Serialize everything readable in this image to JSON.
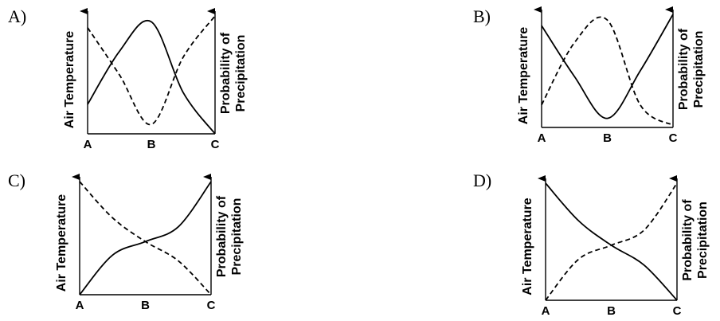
{
  "chart_data": [
    {
      "type": "line",
      "option_label": "A)",
      "categories": [
        "A",
        "B",
        "C"
      ],
      "left_axis_label": "Air Temperature",
      "right_axis_label": [
        "Probability of",
        "Precipitation"
      ],
      "series": [
        {
          "style": "solid",
          "x": [
            0,
            0.5,
            1.0,
            1.5,
            2.0
          ],
          "values": [
            0.25,
            0.7,
            0.95,
            0.35,
            0.0
          ]
        },
        {
          "style": "dashed",
          "x": [
            0,
            0.5,
            1.0,
            1.5,
            2.0
          ],
          "values": [
            0.9,
            0.5,
            0.08,
            0.65,
            1.0
          ]
        }
      ]
    },
    {
      "type": "line",
      "option_label": "B)",
      "categories": [
        "A",
        "B",
        "C"
      ],
      "left_axis_label": "Air Temperature",
      "right_axis_label": [
        "Probability of",
        "Precipitation"
      ],
      "series": [
        {
          "style": "solid",
          "x": [
            0,
            0.5,
            1.0,
            1.5,
            2.0
          ],
          "values": [
            0.9,
            0.45,
            0.08,
            0.5,
            1.0
          ]
        },
        {
          "style": "dashed",
          "x": [
            0,
            0.5,
            1.0,
            1.5,
            2.0
          ],
          "values": [
            0.2,
            0.75,
            0.95,
            0.2,
            0.02
          ]
        }
      ]
    },
    {
      "type": "line",
      "option_label": "C)",
      "categories": [
        "A",
        "B",
        "C"
      ],
      "left_axis_label": "Air Temperature",
      "right_axis_label": [
        "Probability of",
        "Precipitation"
      ],
      "series": [
        {
          "style": "solid",
          "x": [
            0,
            0.5,
            1.0,
            1.5,
            2.0
          ],
          "values": [
            0.0,
            0.35,
            0.47,
            0.6,
            1.0
          ]
        },
        {
          "style": "dashed",
          "x": [
            0,
            0.5,
            1.0,
            1.5,
            2.0
          ],
          "values": [
            1.0,
            0.68,
            0.47,
            0.3,
            0.0
          ]
        }
      ]
    },
    {
      "type": "line",
      "option_label": "D)",
      "categories": [
        "A",
        "B",
        "C"
      ],
      "left_axis_label": "Air Temperature",
      "right_axis_label": [
        "Probability of",
        "Precipitation"
      ],
      "series": [
        {
          "style": "solid",
          "x": [
            0,
            0.5,
            1.0,
            1.5,
            2.0
          ],
          "values": [
            1.0,
            0.68,
            0.47,
            0.3,
            0.0
          ]
        },
        {
          "style": "dashed",
          "x": [
            0,
            0.5,
            1.0,
            1.5,
            2.0
          ],
          "values": [
            0.0,
            0.35,
            0.47,
            0.6,
            1.0
          ]
        }
      ]
    }
  ]
}
